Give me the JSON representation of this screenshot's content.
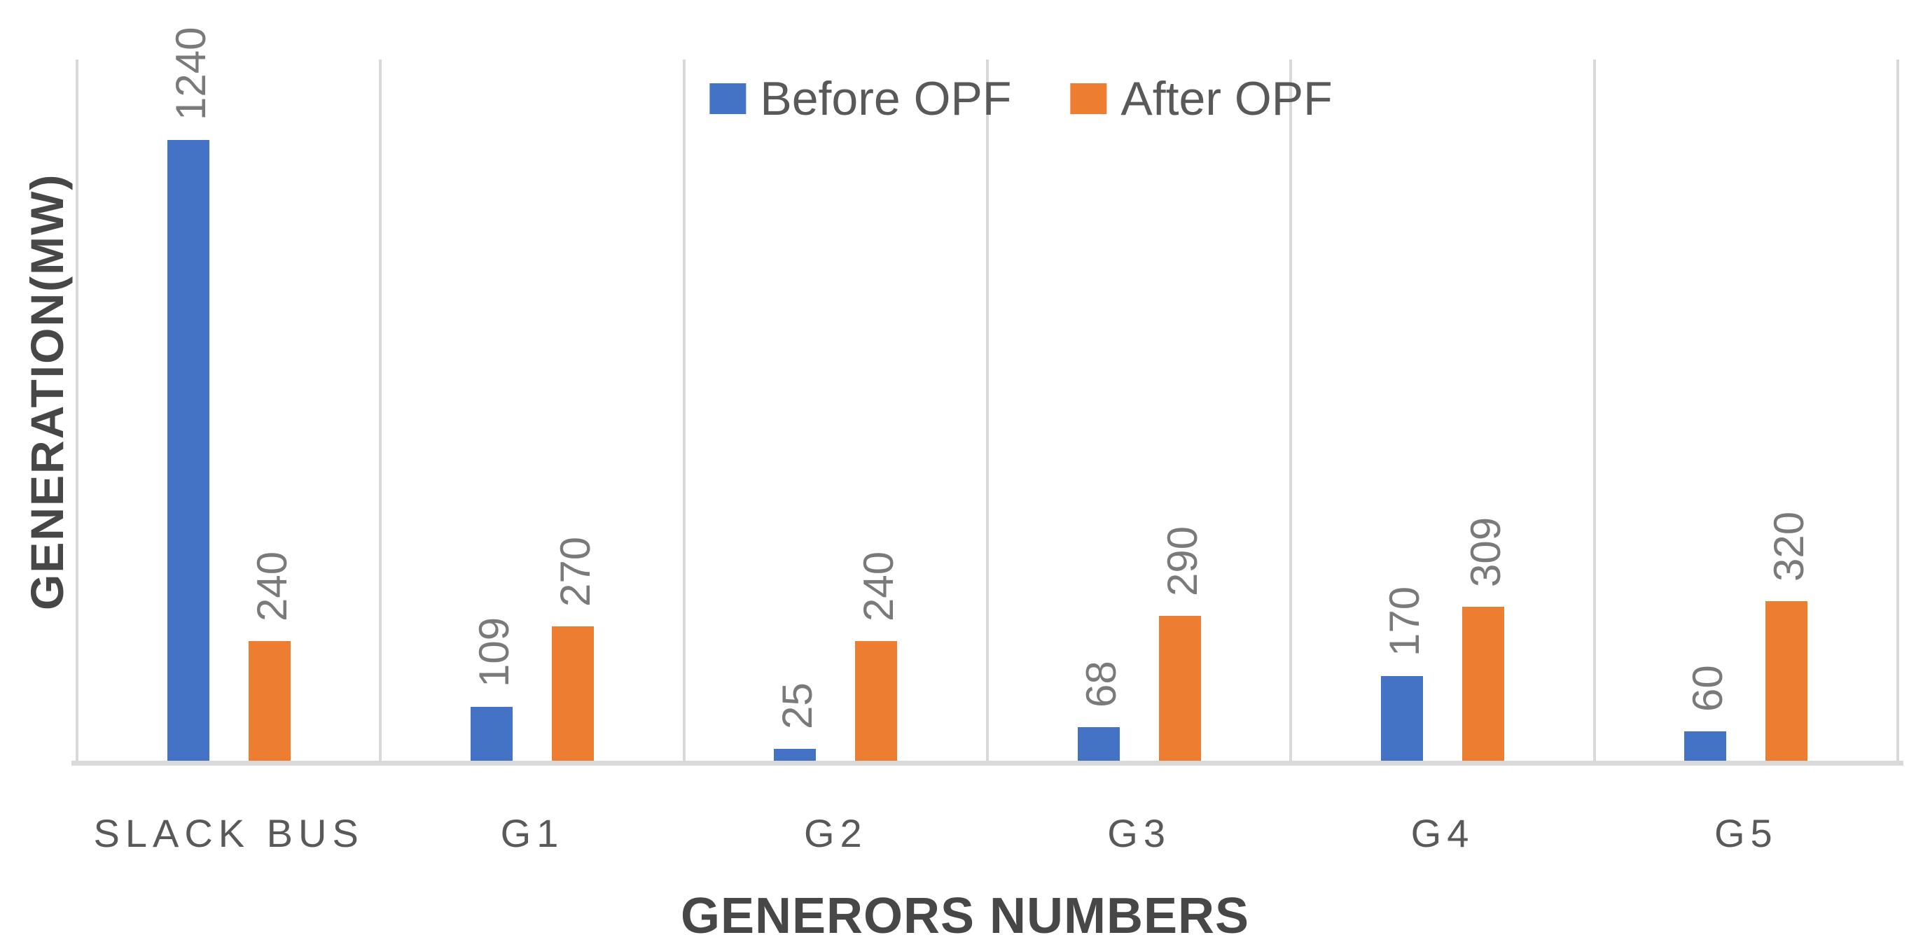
{
  "chart_data": {
    "type": "bar",
    "title": "",
    "categories": [
      "SLACK BUS",
      "G1",
      "G2",
      "G3",
      "G4",
      "G5"
    ],
    "series": [
      {
        "name": "Before OPF",
        "color": "#4472C4",
        "values": [
          1240,
          109,
          25,
          68,
          170,
          60
        ]
      },
      {
        "name": "After OPF",
        "color": "#ED7D31",
        "values": [
          240,
          270,
          240,
          290,
          309,
          320
        ]
      }
    ],
    "xlabel": "GENERORS NUMBERS",
    "ylabel": "GENERATION(MW)",
    "ylim": [
      0,
      1400
    ],
    "y_tick_labels_visible": false,
    "gridlines": "vertical category separators only",
    "legend_position": "top-center",
    "data_labels": {
      "visible": true,
      "rotation": -90,
      "position": "above bar end"
    }
  },
  "colors": {
    "gridline": "#D9D9D9",
    "axis_line": "#D9D9D9",
    "value_label": "#7A7A7A",
    "category_label": "#595959",
    "legend_text": "#595959",
    "axis_title": "#474747",
    "background": "#FFFFFF"
  }
}
